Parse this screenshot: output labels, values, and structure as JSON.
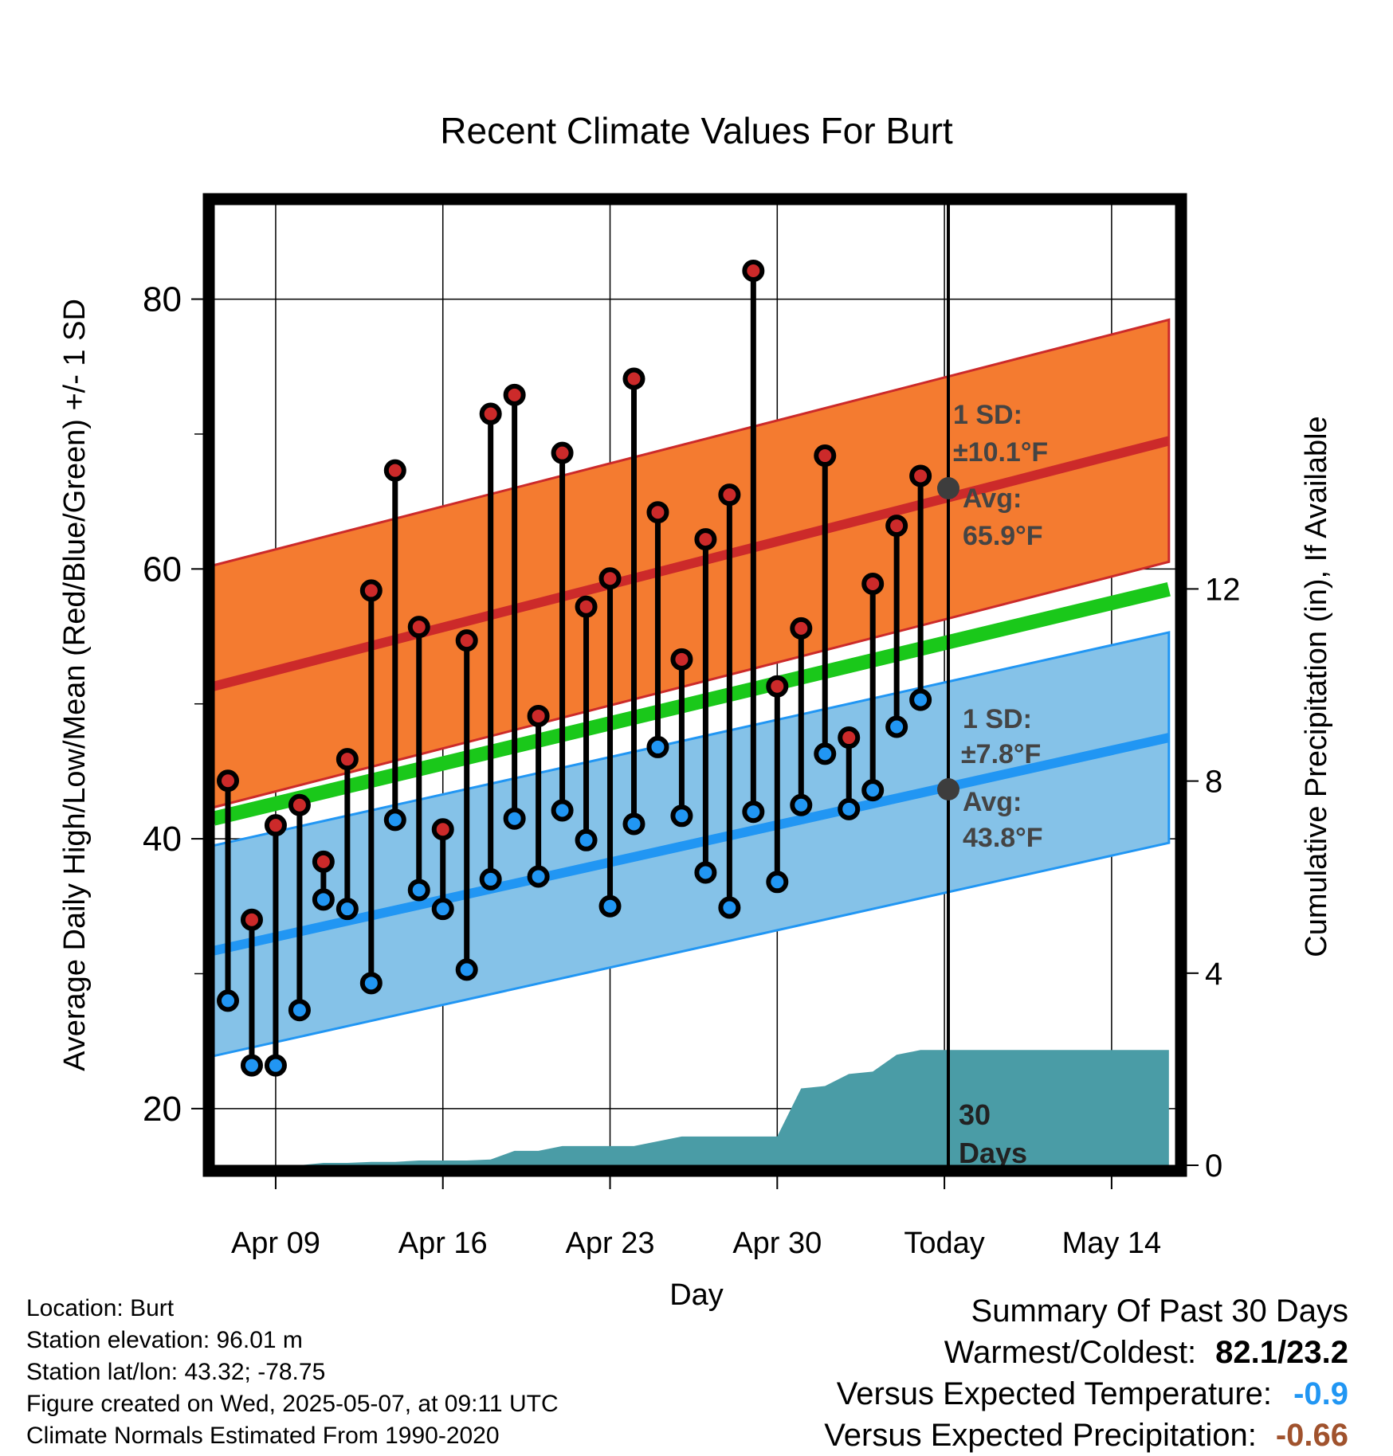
{
  "chart_data": {
    "type": "line",
    "title": "Recent Climate Values For Burt",
    "xlabel": "Day",
    "ylabel": "Average Daily High/Low/Mean (Red/Blue/Green) +/- 1 SD",
    "y2label": "Cumulative Precipitation (in), If Available",
    "x_ticks": [
      "Apr 09",
      "Apr 16",
      "Apr 23",
      "Apr 30",
      "Today",
      "May 14"
    ],
    "y_ticks": [
      20,
      40,
      60,
      80
    ],
    "y2_ticks": [
      0,
      4,
      8,
      12
    ],
    "ylim": [
      15.8,
      87
    ],
    "y2lim": [
      0,
      20
    ],
    "grid": true,
    "observed": {
      "highs": [
        44.3,
        34.0,
        41.0,
        42.5,
        38.3,
        45.9,
        58.4,
        67.3,
        55.7,
        40.7,
        54.7,
        71.5,
        72.9,
        49.1,
        68.6,
        57.2,
        59.3,
        74.1,
        64.2,
        53.3,
        62.2,
        65.5,
        82.1,
        51.3,
        55.6,
        68.4,
        47.5,
        58.9,
        63.2,
        66.9
      ],
      "lows": [
        28.0,
        23.2,
        23.2,
        27.3,
        35.5,
        34.8,
        29.3,
        41.4,
        36.2,
        34.8,
        30.3,
        37.0,
        41.5,
        37.2,
        42.1,
        39.9,
        35.0,
        41.1,
        46.8,
        41.7,
        37.5,
        34.9,
        42.0,
        36.8,
        42.5,
        46.3,
        42.2,
        43.6,
        48.3,
        50.3
      ]
    },
    "normals": {
      "high_mean": [
        51.3,
        69.5
      ],
      "high_sd_label": "1 SD:",
      "high_sd_value": "±10.1°F",
      "high_avg_label": "Avg:",
      "high_avg_value": "65.9°F",
      "low_mean": [
        31.7,
        47.5
      ],
      "low_sd_label": "1 SD:",
      "low_sd_value": "±7.8°F",
      "low_avg_label": "Avg:",
      "low_avg_value": "43.8°F",
      "mean_line": [
        41.5,
        58.5
      ]
    },
    "precipitation_cumulative": [
      0,
      0,
      0,
      0,
      0.05,
      0.05,
      0.07,
      0.07,
      0.1,
      0.1,
      0.1,
      0.12,
      0.3,
      0.3,
      0.4,
      0.4,
      0.4,
      0.4,
      0.5,
      0.6,
      0.6,
      0.6,
      0.6,
      0.6,
      1.6,
      1.65,
      1.9,
      1.95,
      2.3,
      2.4,
      2.4
    ],
    "precip_label": [
      "30",
      "Days"
    ],
    "colors": {
      "high": "#cc2a2a",
      "high_band": "#f47b30",
      "low": "#2196f3",
      "low_band": "#85c2e8",
      "mean": "#1ac81a",
      "precip": "#4a9ca6",
      "avg_marker": "#3d3d3d"
    }
  },
  "info": [
    "Location: Burt",
    "Station elevation: 96.01 m",
    "Station lat/lon: 43.32; -78.75",
    "Figure created on Wed, 2025-05-07, at 09:11 UTC",
    "Climate Normals Estimated From 1990-2020"
  ],
  "summary": {
    "title": "Summary Of Past 30 Days",
    "warmest_label": "Warmest/Coldest:",
    "warmest_value": "82.1/23.2",
    "temp_label": "Versus Expected Temperature:",
    "temp_value": "-0.9",
    "temp_color": "#2196f3",
    "precip_label": "Versus Expected Precipitation:",
    "precip_value": "-0.66",
    "precip_color": "#a0522d"
  }
}
